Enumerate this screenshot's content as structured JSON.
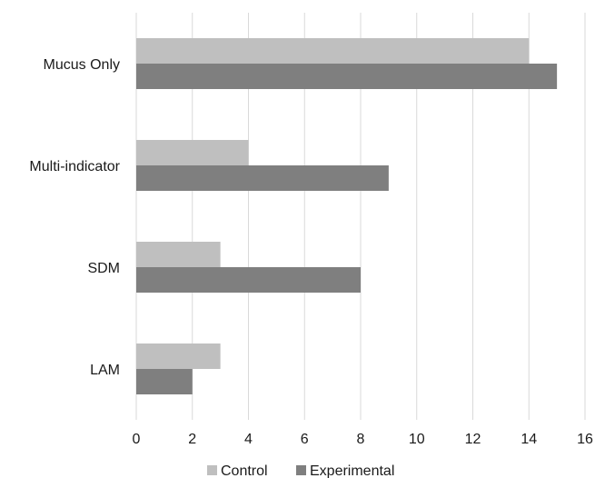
{
  "chart_data": {
    "type": "bar",
    "orientation": "horizontal",
    "categories": [
      "Mucus Only",
      "Multi-indicator",
      "SDM",
      "LAM"
    ],
    "series": [
      {
        "name": "Control",
        "values": [
          14,
          4,
          3,
          3
        ],
        "color": "#bfbfbf"
      },
      {
        "name": "Experimental",
        "values": [
          15,
          9,
          8,
          2
        ],
        "color": "#7f7f7f"
      }
    ],
    "xlim": [
      0,
      16
    ],
    "x_ticks": [
      "0",
      "2",
      "4",
      "6",
      "8",
      "10",
      "12",
      "14",
      "16"
    ],
    "title": "",
    "xlabel": "",
    "ylabel": "",
    "grid": true,
    "legend_position": "bottom"
  }
}
